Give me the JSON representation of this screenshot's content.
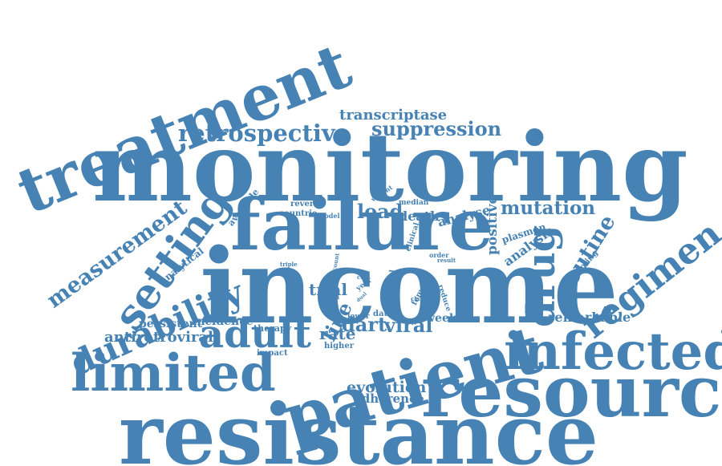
{
  "cloud": {
    "color": "#4682B4",
    "words": {
      "treatment": "treatment",
      "monitoring": "monitoring",
      "income": "income",
      "resistance": "resistance",
      "failure": "failure",
      "patient": "patient",
      "resource": "resource",
      "limited": "limited",
      "infected": "infected",
      "setting": "setting",
      "durability": "durability",
      "adult": "adult",
      "regimen": "regimen",
      "drug": "drug",
      "measurement": "measurement",
      "retrospective": "retrospective",
      "suppression": "suppression",
      "transcriptase": "transcriptase",
      "mutation": "mutation",
      "routine": "routine",
      "evolution": "evolution",
      "adherence": "adherence",
      "viral": "viral",
      "dart": "dart",
      "rate": "rate",
      "line": "line",
      "trial": "trial",
      "load": "load",
      "death": "death",
      "analyse": "analyse",
      "positive": "positive",
      "plasmon": "plasmon",
      "analysis": "analysis",
      "remarkable": "remarkable",
      "antiretroviral": "antiretroviral",
      "persistent": "persistent",
      "incidence": "incidence",
      "week": "week",
      "therapy": "therapy",
      "impact": "impact",
      "higher": "higher",
      "lower": "lower",
      "data": "data",
      "available": "available",
      "analytical": "analytical",
      "reverse": "reverse",
      "countrie": "countrie",
      "model": "model",
      "weight": "weight",
      "median": "median",
      "clinical": "clinical",
      "order": "order",
      "result": "result",
      "sampling": "sampling",
      "triple": "triple",
      "count": "count",
      "cell": "cell",
      "year": "year",
      "dual": "dual",
      "annual": "annual",
      "female": "female",
      "reduce": "reduce",
      "class": "class",
      "term": "term"
    }
  }
}
